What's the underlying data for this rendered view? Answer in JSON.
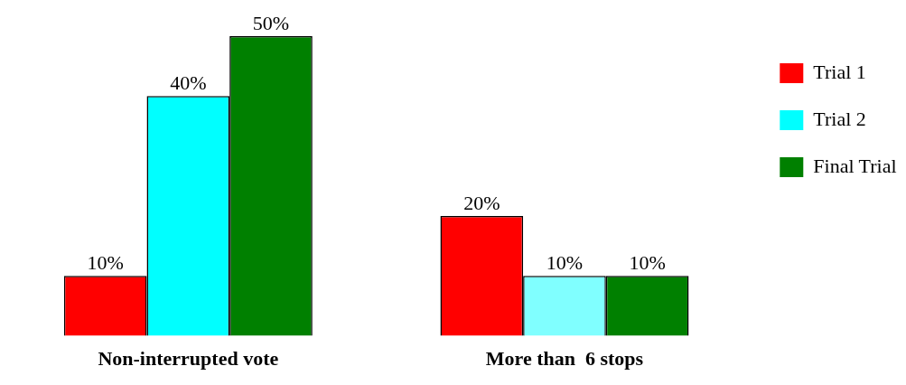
{
  "chart_data": {
    "type": "bar",
    "categories": [
      "Non-interrupted vote",
      "More than  6 stops"
    ],
    "series": [
      {
        "name": "Trial 1",
        "color": "#ff0000",
        "values": [
          10,
          20
        ],
        "value_labels": [
          "10%",
          "20%"
        ]
      },
      {
        "name": "Trial 2",
        "color": "#00ffff",
        "colors": [
          "#00ffff",
          "#80ffff"
        ],
        "values": [
          40,
          10
        ],
        "value_labels": [
          "40%",
          "10%"
        ]
      },
      {
        "name": "Final Trial",
        "color": "#008000",
        "values": [
          50,
          10
        ],
        "value_labels": [
          "50%",
          "10%"
        ]
      }
    ],
    "legend": "top right",
    "tick_labels": "x",
    "grid": false
  }
}
